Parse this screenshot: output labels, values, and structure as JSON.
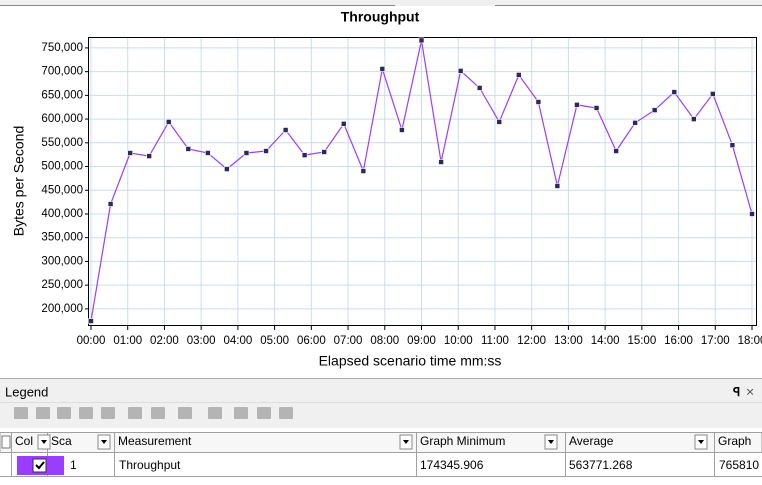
{
  "chart_data": {
    "type": "line",
    "title": "Throughput",
    "x_label": "Elapsed scenario time mm:ss",
    "y_label": "Bytes per Second",
    "x": [
      0,
      32,
      64,
      95,
      127,
      159,
      191,
      222,
      254,
      286,
      318,
      349,
      381,
      413,
      445,
      476,
      508,
      540,
      572,
      604,
      635,
      667,
      699,
      731,
      762,
      794,
      826,
      858,
      889,
      921,
      953,
      985,
      1016,
      1048,
      1080
    ],
    "series": [
      {
        "name": "Throughput",
        "color": "#9b3dff",
        "marker_color": "#2a2a5a",
        "values": [
          174346,
          421000,
          528500,
          522000,
          594000,
          537000,
          528500,
          494700,
          528500,
          532700,
          577000,
          524000,
          530600,
          590000,
          490500,
          705700,
          577000,
          765810,
          509500,
          701500,
          665600,
          594000,
          693000,
          636000,
          459000,
          630000,
          623400,
          532700,
          592000,
          619000,
          657000,
          600000,
          653000,
          545000,
          400000
        ]
      }
    ],
    "xlim": [
      0,
      1080
    ],
    "xticks": [
      {
        "value": 0,
        "label": "00:00"
      },
      {
        "value": 60,
        "label": "01:00"
      },
      {
        "value": 120,
        "label": "02:00"
      },
      {
        "value": 180,
        "label": "03:00"
      },
      {
        "value": 240,
        "label": "04:00"
      },
      {
        "value": 300,
        "label": "05:00"
      },
      {
        "value": 360,
        "label": "06:00"
      },
      {
        "value": 420,
        "label": "07:00"
      },
      {
        "value": 480,
        "label": "08:00"
      },
      {
        "value": 540,
        "label": "09:00"
      },
      {
        "value": 600,
        "label": "10:00"
      },
      {
        "value": 660,
        "label": "11:00"
      },
      {
        "value": 720,
        "label": "12:00"
      },
      {
        "value": 780,
        "label": "13:00"
      },
      {
        "value": 840,
        "label": "14:00"
      },
      {
        "value": 900,
        "label": "15:00"
      },
      {
        "value": 960,
        "label": "16:00"
      },
      {
        "value": 1020,
        "label": "17:00"
      },
      {
        "value": 1080,
        "label": "18:00"
      }
    ],
    "ylim": [
      166000,
      773000
    ],
    "yticks": [
      {
        "value": 200000,
        "label": "200,000"
      },
      {
        "value": 250000,
        "label": "250,000"
      },
      {
        "value": 300000,
        "label": "300,000"
      },
      {
        "value": 350000,
        "label": "350,000"
      },
      {
        "value": 400000,
        "label": "400,000"
      },
      {
        "value": 450000,
        "label": "450,000"
      },
      {
        "value": 500000,
        "label": "500,000"
      },
      {
        "value": 550000,
        "label": "550,000"
      },
      {
        "value": 600000,
        "label": "600,000"
      },
      {
        "value": 650000,
        "label": "650,000"
      },
      {
        "value": 700000,
        "label": "700,000"
      },
      {
        "value": 750000,
        "label": "750,000"
      }
    ],
    "grid": true,
    "grid_color": "#c9dcf2"
  },
  "legend_panel": {
    "title": "Legend",
    "columns": [
      "Col",
      "Sca",
      "Measurement",
      "Graph Minimum",
      "Average",
      "Graph"
    ],
    "row": {
      "scale": "1",
      "graph_minimum": "174345.906",
      "average": "563771.268",
      "graph_maximum": "765810"
    }
  }
}
